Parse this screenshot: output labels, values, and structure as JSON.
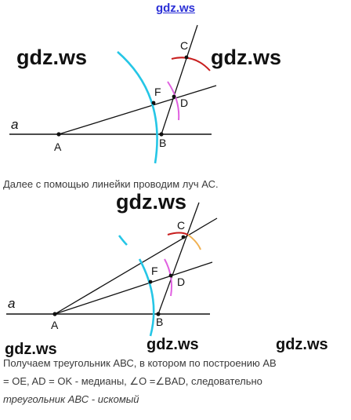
{
  "header_watermark": "gdz.ws",
  "watermarks": {
    "top_left": "gdz.ws",
    "top_right": "gdz.ws",
    "middle": "gdz.ws",
    "bottom_left": "gdz.ws",
    "bottom_middle": "gdz.ws",
    "bottom_right": "gdz.ws"
  },
  "figure1": {
    "labels": {
      "a": "a",
      "A": "A",
      "B": "B",
      "C": "C",
      "D": "D",
      "F": "F"
    }
  },
  "figure2": {
    "labels": {
      "a": "a",
      "A": "A",
      "B": "B",
      "C": "C",
      "D": "D",
      "F": "F"
    }
  },
  "text1": "Далее с помощью линейки проводим луч АС.",
  "text2": {
    "line1": "Получаем треугольник АВС, в котором по построению АВ",
    "line2": "= OE, AD = OK - медианы, ∠O =∠BAD, следовательно",
    "line3": "треугольник АВС - искомый"
  },
  "colors": {
    "arc_cyan": "#25c6e6",
    "arc_magenta": "#e060e0",
    "arc_red": "#c81e1e",
    "arc_orange": "#f0b050",
    "line": "#111111",
    "header_link": "#2a2fd6"
  }
}
